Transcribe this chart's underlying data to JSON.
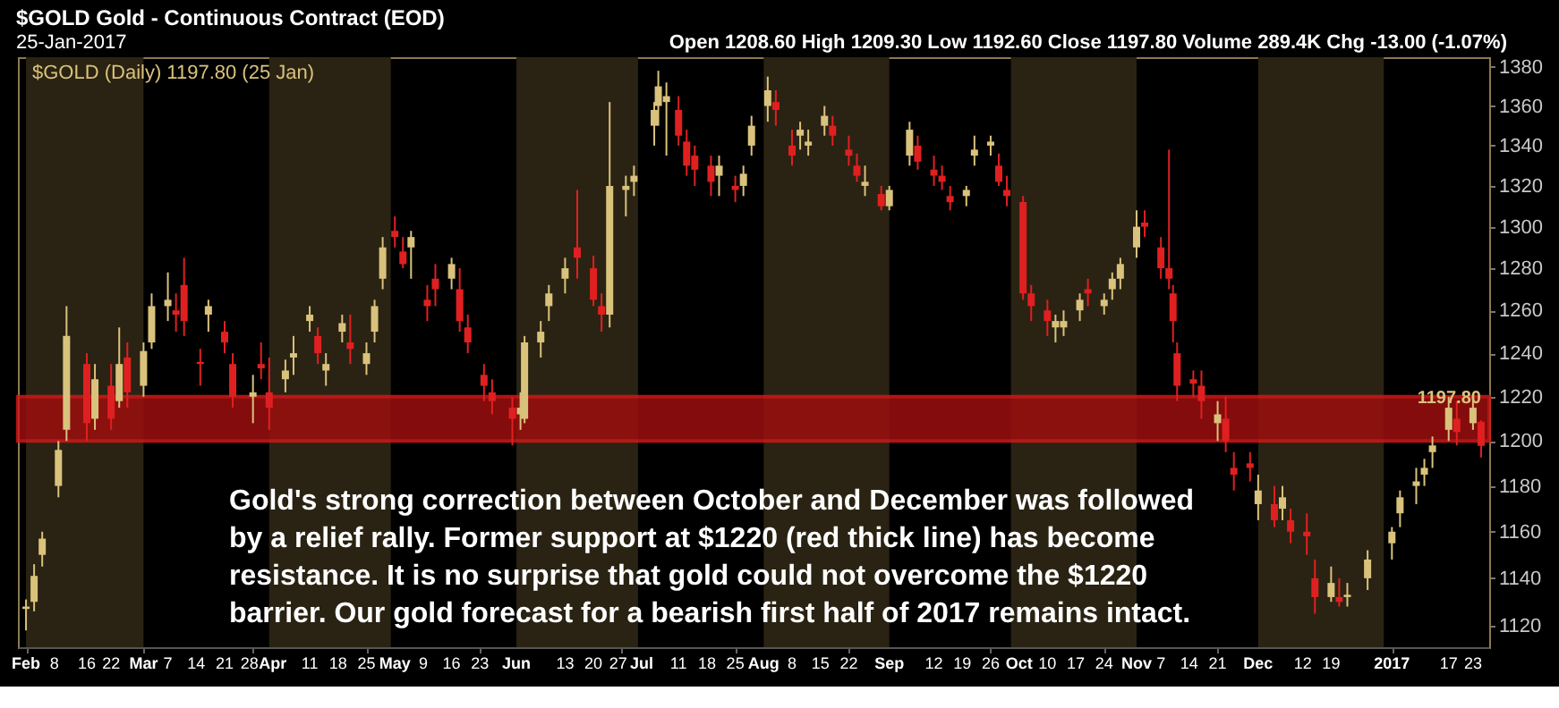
{
  "chart_data": {
    "type": "candlestick",
    "title": "$GOLD Gold - Continuous Contract (EOD)",
    "subtitle": "25-Jan-2017",
    "annotations": [
      "Open 1208.60  High 1209.30  Low 1192.60  Close 1197.80  Volume 289.4K  Chg -13.00 (-1.07%)",
      "$GOLD (Daily) 1197.80 (25 Jan)",
      "Gold's strong correction between October and December was followed\nby a relief rally. Former support at $1220 (red thick line) has become\nresistance. It is no surprise that gold could not overcome the $1220\nbarrier. Our gold forecast for a bearish first half of 2017 remains intact.",
      {
        "text": "1197.80",
        "x": "2017-01-25",
        "y": 1197.8
      }
    ],
    "x": [
      "2016-02-01",
      "2016-02-03",
      "2016-02-05",
      "2016-02-09",
      "2016-02-11",
      "2016-02-16",
      "2016-02-18",
      "2016-02-22",
      "2016-02-24",
      "2016-02-26",
      "2016-03-01",
      "2016-03-03",
      "2016-03-07",
      "2016-03-09",
      "2016-03-11",
      "2016-03-15",
      "2016-03-17",
      "2016-03-21",
      "2016-03-23",
      "2016-03-28",
      "2016-03-30",
      "2016-04-01",
      "2016-04-05",
      "2016-04-07",
      "2016-04-11",
      "2016-04-13",
      "2016-04-15",
      "2016-04-19",
      "2016-04-21",
      "2016-04-25",
      "2016-04-27",
      "2016-04-29",
      "2016-05-02",
      "2016-05-04",
      "2016-05-06",
      "2016-05-10",
      "2016-05-12",
      "2016-05-16",
      "2016-05-18",
      "2016-05-20",
      "2016-05-24",
      "2016-05-26",
      "2016-05-31",
      "2016-06-02",
      "2016-06-03",
      "2016-06-07",
      "2016-06-09",
      "2016-06-13",
      "2016-06-16",
      "2016-06-20",
      "2016-06-22",
      "2016-06-24",
      "2016-06-28",
      "2016-06-30",
      "2016-07-05",
      "2016-07-06",
      "2016-07-08",
      "2016-07-11",
      "2016-07-13",
      "2016-07-15",
      "2016-07-19",
      "2016-07-21",
      "2016-07-25",
      "2016-07-27",
      "2016-07-29",
      "2016-08-02",
      "2016-08-04",
      "2016-08-08",
      "2016-08-10",
      "2016-08-12",
      "2016-08-16",
      "2016-08-18",
      "2016-08-22",
      "2016-08-24",
      "2016-08-26",
      "2016-08-30",
      "2016-09-01",
      "2016-09-06",
      "2016-09-08",
      "2016-09-12",
      "2016-09-14",
      "2016-09-16",
      "2016-09-20",
      "2016-09-22",
      "2016-09-26",
      "2016-09-28",
      "2016-09-30",
      "2016-10-04",
      "2016-10-06",
      "2016-10-10",
      "2016-10-12",
      "2016-10-14",
      "2016-10-18",
      "2016-10-20",
      "2016-10-24",
      "2016-10-26",
      "2016-10-28",
      "2016-11-01",
      "2016-11-03",
      "2016-11-07",
      "2016-11-09",
      "2016-11-10",
      "2016-11-11",
      "2016-11-15",
      "2016-11-17",
      "2016-11-21",
      "2016-11-23",
      "2016-11-25",
      "2016-11-29",
      "2016-12-01",
      "2016-12-05",
      "2016-12-07",
      "2016-12-09",
      "2016-12-13",
      "2016-12-15",
      "2016-12-19",
      "2016-12-21",
      "2016-12-23",
      "2016-12-28",
      "2017-01-03",
      "2017-01-05",
      "2017-01-09",
      "2017-01-11",
      "2017-01-13",
      "2017-01-17",
      "2017-01-19",
      "2017-01-23",
      "2017-01-25"
    ],
    "ohlc": [
      [
        1128,
        1131,
        1118,
        1127
      ],
      [
        1130,
        1146,
        1126,
        1141
      ],
      [
        1150,
        1160,
        1145,
        1157
      ],
      [
        1180,
        1200,
        1175,
        1196
      ],
      [
        1205,
        1262,
        1200,
        1248
      ],
      [
        1235,
        1240,
        1200,
        1208
      ],
      [
        1210,
        1235,
        1205,
        1228
      ],
      [
        1225,
        1235,
        1205,
        1210
      ],
      [
        1218,
        1252,
        1215,
        1235
      ],
      [
        1238,
        1245,
        1215,
        1222
      ],
      [
        1225,
        1245,
        1220,
        1241
      ],
      [
        1245,
        1268,
        1242,
        1262
      ],
      [
        1262,
        1278,
        1255,
        1265
      ],
      [
        1260,
        1268,
        1250,
        1258
      ],
      [
        1272,
        1285,
        1248,
        1255
      ],
      [
        1236,
        1242,
        1225,
        1235
      ],
      [
        1258,
        1265,
        1250,
        1262
      ],
      [
        1250,
        1255,
        1240,
        1245
      ],
      [
        1235,
        1240,
        1215,
        1220
      ],
      [
        1220,
        1230,
        1208,
        1222
      ],
      [
        1235,
        1245,
        1228,
        1233
      ],
      [
        1222,
        1238,
        1205,
        1215
      ],
      [
        1228,
        1237,
        1222,
        1232
      ],
      [
        1238,
        1248,
        1230,
        1240
      ],
      [
        1255,
        1262,
        1250,
        1258
      ],
      [
        1248,
        1252,
        1235,
        1240
      ],
      [
        1232,
        1240,
        1225,
        1235
      ],
      [
        1250,
        1258,
        1245,
        1254
      ],
      [
        1245,
        1258,
        1235,
        1242
      ],
      [
        1235,
        1245,
        1230,
        1240
      ],
      [
        1250,
        1265,
        1245,
        1262
      ],
      [
        1275,
        1295,
        1270,
        1290
      ],
      [
        1298,
        1305,
        1290,
        1295
      ],
      [
        1288,
        1295,
        1280,
        1282
      ],
      [
        1290,
        1298,
        1275,
        1295
      ],
      [
        1265,
        1272,
        1255,
        1262
      ],
      [
        1275,
        1282,
        1262,
        1270
      ],
      [
        1275,
        1285,
        1270,
        1282
      ],
      [
        1270,
        1280,
        1250,
        1255
      ],
      [
        1252,
        1258,
        1240,
        1245
      ],
      [
        1230,
        1235,
        1218,
        1225
      ],
      [
        1222,
        1228,
        1212,
        1218
      ],
      [
        1215,
        1220,
        1198,
        1210
      ],
      [
        1212,
        1222,
        1205,
        1215
      ],
      [
        1210,
        1248,
        1208,
        1245
      ],
      [
        1245,
        1255,
        1238,
        1250
      ],
      [
        1262,
        1272,
        1255,
        1268
      ],
      [
        1275,
        1285,
        1268,
        1280
      ],
      [
        1290,
        1318,
        1275,
        1285
      ],
      [
        1280,
        1286,
        1262,
        1265
      ],
      [
        1262,
        1268,
        1250,
        1258
      ],
      [
        1258,
        1362,
        1252,
        1320
      ],
      [
        1318,
        1325,
        1305,
        1320
      ],
      [
        1322,
        1330,
        1315,
        1325
      ],
      [
        1350,
        1362,
        1340,
        1358
      ],
      [
        1360,
        1378,
        1350,
        1370
      ],
      [
        1362,
        1372,
        1335,
        1365
      ],
      [
        1358,
        1365,
        1340,
        1345
      ],
      [
        1342,
        1348,
        1325,
        1330
      ],
      [
        1335,
        1340,
        1320,
        1328
      ],
      [
        1330,
        1335,
        1315,
        1322
      ],
      [
        1325,
        1335,
        1315,
        1330
      ],
      [
        1320,
        1325,
        1312,
        1318
      ],
      [
        1320,
        1330,
        1315,
        1326
      ],
      [
        1340,
        1355,
        1335,
        1350
      ],
      [
        1360,
        1375,
        1352,
        1368
      ],
      [
        1362,
        1368,
        1350,
        1358
      ],
      [
        1340,
        1348,
        1330,
        1335
      ],
      [
        1345,
        1352,
        1338,
        1348
      ],
      [
        1340,
        1348,
        1335,
        1342
      ],
      [
        1350,
        1360,
        1345,
        1355
      ],
      [
        1350,
        1355,
        1340,
        1345
      ],
      [
        1338,
        1345,
        1330,
        1335
      ],
      [
        1330,
        1336,
        1322,
        1325
      ],
      [
        1320,
        1330,
        1315,
        1322
      ],
      [
        1316,
        1320,
        1308,
        1310
      ],
      [
        1310,
        1320,
        1308,
        1318
      ],
      [
        1335,
        1352,
        1330,
        1348
      ],
      [
        1340,
        1345,
        1328,
        1332
      ],
      [
        1328,
        1335,
        1320,
        1325
      ],
      [
        1325,
        1330,
        1318,
        1322
      ],
      [
        1315,
        1320,
        1308,
        1312
      ],
      [
        1315,
        1320,
        1310,
        1318
      ],
      [
        1335,
        1345,
        1330,
        1338
      ],
      [
        1340,
        1345,
        1335,
        1342
      ],
      [
        1330,
        1336,
        1320,
        1322
      ],
      [
        1318,
        1325,
        1310,
        1315
      ],
      [
        1312,
        1315,
        1265,
        1268
      ],
      [
        1268,
        1272,
        1255,
        1262
      ],
      [
        1260,
        1265,
        1248,
        1255
      ],
      [
        1252,
        1258,
        1245,
        1255
      ],
      [
        1252,
        1260,
        1248,
        1255
      ],
      [
        1260,
        1268,
        1255,
        1265
      ],
      [
        1270,
        1275,
        1262,
        1268
      ],
      [
        1262,
        1268,
        1258,
        1265
      ],
      [
        1270,
        1278,
        1265,
        1275
      ],
      [
        1275,
        1285,
        1270,
        1282
      ],
      [
        1290,
        1308,
        1285,
        1300
      ],
      [
        1302,
        1308,
        1295,
        1300
      ],
      [
        1290,
        1295,
        1275,
        1280
      ],
      [
        1280,
        1338,
        1270,
        1275
      ],
      [
        1268,
        1272,
        1245,
        1255
      ],
      [
        1240,
        1245,
        1218,
        1225
      ],
      [
        1228,
        1232,
        1220,
        1226
      ],
      [
        1225,
        1232,
        1210,
        1218
      ],
      [
        1208,
        1218,
        1200,
        1212
      ],
      [
        1210,
        1220,
        1195,
        1200
      ],
      [
        1188,
        1195,
        1178,
        1185
      ],
      [
        1190,
        1195,
        1182,
        1188
      ],
      [
        1172,
        1185,
        1165,
        1178
      ],
      [
        1172,
        1180,
        1162,
        1165
      ],
      [
        1170,
        1180,
        1165,
        1175
      ],
      [
        1165,
        1170,
        1155,
        1160
      ],
      [
        1160,
        1168,
        1150,
        1158
      ],
      [
        1140,
        1148,
        1125,
        1132
      ],
      [
        1132,
        1145,
        1130,
        1138
      ],
      [
        1132,
        1140,
        1128,
        1130
      ],
      [
        1132,
        1138,
        1128,
        1133
      ],
      [
        1140,
        1152,
        1135,
        1148
      ],
      [
        1155,
        1162,
        1148,
        1160
      ],
      [
        1168,
        1178,
        1162,
        1175
      ],
      [
        1180,
        1188,
        1172,
        1182
      ],
      [
        1185,
        1192,
        1180,
        1188
      ],
      [
        1195,
        1202,
        1188,
        1198
      ],
      [
        1205,
        1220,
        1200,
        1215
      ],
      [
        1210,
        1218,
        1198,
        1204
      ],
      [
        1208,
        1220,
        1205,
        1215
      ],
      [
        1208.6,
        1209.3,
        1192.6,
        1197.8
      ]
    ],
    "colors": [
      "#d9c27c",
      "#d9c27c",
      "#d9c27c",
      "#d9c27c",
      "#d9c27c",
      "#e02020",
      "#d9c27c",
      "#e02020",
      "#d9c27c",
      "#e02020",
      "#d9c27c",
      "#d9c27c",
      "#d9c27c",
      "#e02020",
      "#e02020",
      "#e02020",
      "#d9c27c",
      "#e02020",
      "#e02020",
      "#d9c27c",
      "#e02020",
      "#e02020",
      "#d9c27c",
      "#d9c27c",
      "#d9c27c",
      "#e02020",
      "#d9c27c",
      "#d9c27c",
      "#e02020",
      "#d9c27c",
      "#d9c27c",
      "#d9c27c",
      "#e02020",
      "#e02020",
      "#d9c27c",
      "#e02020",
      "#e02020",
      "#d9c27c",
      "#e02020",
      "#e02020",
      "#e02020",
      "#e02020",
      "#e02020",
      "#d9c27c",
      "#d9c27c",
      "#d9c27c",
      "#d9c27c",
      "#d9c27c",
      "#e02020",
      "#e02020",
      "#e02020",
      "#d9c27c",
      "#d9c27c",
      "#d9c27c",
      "#d9c27c",
      "#d9c27c",
      "#d9c27c",
      "#e02020",
      "#e02020",
      "#e02020",
      "#e02020",
      "#d9c27c",
      "#e02020",
      "#d9c27c",
      "#d9c27c",
      "#d9c27c",
      "#e02020",
      "#e02020",
      "#d9c27c",
      "#d9c27c",
      "#d9c27c",
      "#e02020",
      "#e02020",
      "#e02020",
      "#d9c27c",
      "#e02020",
      "#d9c27c",
      "#d9c27c",
      "#e02020",
      "#e02020",
      "#e02020",
      "#e02020",
      "#d9c27c",
      "#d9c27c",
      "#d9c27c",
      "#e02020",
      "#e02020",
      "#e02020",
      "#e02020",
      "#e02020",
      "#d9c27c",
      "#d9c27c",
      "#d9c27c",
      "#e02020",
      "#d9c27c",
      "#d9c27c",
      "#d9c27c",
      "#d9c27c",
      "#e02020",
      "#e02020",
      "#e02020",
      "#e02020",
      "#e02020",
      "#e02020",
      "#e02020",
      "#d9c27c",
      "#e02020",
      "#e02020",
      "#e02020",
      "#d9c27c",
      "#e02020",
      "#d9c27c",
      "#e02020",
      "#e02020",
      "#e02020",
      "#d9c27c",
      "#e02020",
      "#d9c27c",
      "#d9c27c",
      "#d9c27c",
      "#d9c27c",
      "#d9c27c",
      "#d9c27c",
      "#d9c27c",
      "#d9c27c",
      "#e02020",
      "#d9c27c",
      "#e02020"
    ],
    "xlim": [
      "2016-01-30",
      "2017-01-27"
    ],
    "xticks": [
      {
        "value": "2016-02-01",
        "label": "Feb"
      },
      {
        "value": "2016-02-08",
        "label": "8"
      },
      {
        "value": "2016-02-16",
        "label": "16"
      },
      {
        "value": "2016-02-22",
        "label": "22"
      },
      {
        "value": "2016-03-01",
        "label": "Mar"
      },
      {
        "value": "2016-03-07",
        "label": "7"
      },
      {
        "value": "2016-03-14",
        "label": "14"
      },
      {
        "value": "2016-03-21",
        "label": "21"
      },
      {
        "value": "2016-03-28",
        "label": "28"
      },
      {
        "value": "2016-04-01",
        "label": "Apr"
      },
      {
        "value": "2016-04-11",
        "label": "11"
      },
      {
        "value": "2016-04-18",
        "label": "18"
      },
      {
        "value": "2016-04-25",
        "label": "25"
      },
      {
        "value": "2016-05-02",
        "label": "May"
      },
      {
        "value": "2016-05-09",
        "label": "9"
      },
      {
        "value": "2016-05-16",
        "label": "16"
      },
      {
        "value": "2016-05-23",
        "label": "23"
      },
      {
        "value": "2016-06-01",
        "label": "Jun"
      },
      {
        "value": "2016-06-13",
        "label": "13"
      },
      {
        "value": "2016-06-20",
        "label": "20"
      },
      {
        "value": "2016-06-27",
        "label": "27"
      },
      {
        "value": "2016-07-01",
        "label": "Jul"
      },
      {
        "value": "2016-07-11",
        "label": "11"
      },
      {
        "value": "2016-07-18",
        "label": "18"
      },
      {
        "value": "2016-07-25",
        "label": "25"
      },
      {
        "value": "2016-08-01",
        "label": "Aug"
      },
      {
        "value": "2016-08-08",
        "label": "8"
      },
      {
        "value": "2016-08-15",
        "label": "15"
      },
      {
        "value": "2016-08-22",
        "label": "22"
      },
      {
        "value": "2016-09-01",
        "label": "Sep"
      },
      {
        "value": "2016-09-12",
        "label": "12"
      },
      {
        "value": "2016-09-19",
        "label": "19"
      },
      {
        "value": "2016-09-26",
        "label": "26"
      },
      {
        "value": "2016-10-03",
        "label": "Oct"
      },
      {
        "value": "2016-10-10",
        "label": "10"
      },
      {
        "value": "2016-10-17",
        "label": "17"
      },
      {
        "value": "2016-10-24",
        "label": "24"
      },
      {
        "value": "2016-11-01",
        "label": "Nov"
      },
      {
        "value": "2016-11-07",
        "label": "7"
      },
      {
        "value": "2016-11-14",
        "label": "14"
      },
      {
        "value": "2016-11-21",
        "label": "21"
      },
      {
        "value": "2016-12-01",
        "label": "Dec"
      },
      {
        "value": "2016-12-12",
        "label": "12"
      },
      {
        "value": "2016-12-19",
        "label": "19"
      },
      {
        "value": "2017-01-03",
        "label": "2017"
      },
      {
        "value": "2017-01-17",
        "label": "17"
      },
      {
        "value": "2017-01-23",
        "label": "23"
      }
    ],
    "ylim": [
      1111,
      1385
    ],
    "yticks": [
      1120,
      1140,
      1160,
      1180,
      1200,
      1220,
      1240,
      1260,
      1280,
      1300,
      1320,
      1340,
      1360,
      1380
    ],
    "log": true,
    "grid": false,
    "bands": [
      {
        "axis": "x",
        "from": "2016-02-01",
        "to": "2016-03-01",
        "color": "#2a2313"
      },
      {
        "axis": "x",
        "from": "2016-04-01",
        "to": "2016-05-01",
        "color": "#2a2313"
      },
      {
        "axis": "x",
        "from": "2016-06-01",
        "to": "2016-07-01",
        "color": "#2a2313"
      },
      {
        "axis": "x",
        "from": "2016-08-01",
        "to": "2016-09-01",
        "color": "#2a2313"
      },
      {
        "axis": "x",
        "from": "2016-10-01",
        "to": "2016-11-01",
        "color": "#2a2313"
      },
      {
        "axis": "x",
        "from": "2016-12-01",
        "to": "2017-01-01",
        "color": "#2a2313"
      },
      {
        "axis": "y",
        "from": 1200,
        "to": 1220,
        "color": "#9c0f0f"
      }
    ]
  }
}
